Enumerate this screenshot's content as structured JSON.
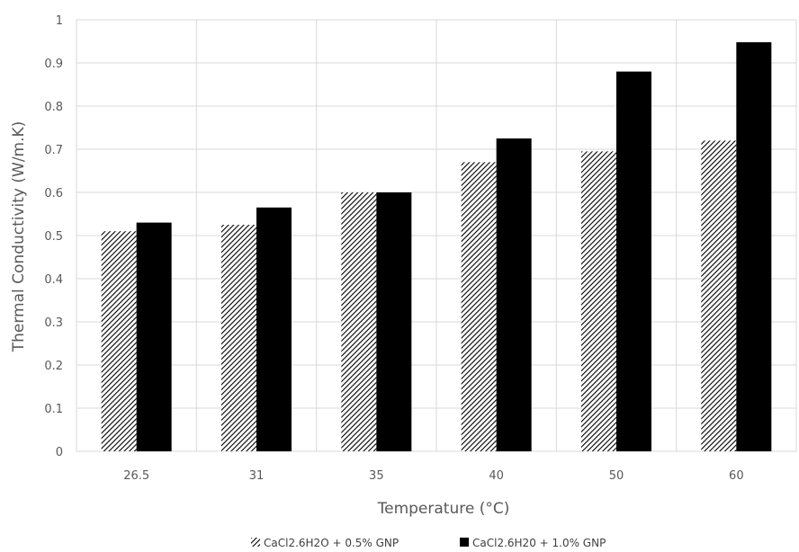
{
  "chart_data": {
    "type": "bar",
    "title": "",
    "xlabel": "Temperature (°C)",
    "ylabel": "Thermal Conductivity (W/m.K)",
    "categories": [
      "26.5",
      "31",
      "35",
      "40",
      "50",
      "60"
    ],
    "ylim": [
      0,
      1
    ],
    "yticks": [
      "0",
      "0.1",
      "0.2",
      "0.3",
      "0.4",
      "0.5",
      "0.6",
      "0.7",
      "0.8",
      "0.9",
      "1"
    ],
    "grid": true,
    "legend_position": "bottom",
    "series": [
      {
        "name": "CaCl2.6H2O + 0.5% GNP",
        "values": [
          0.51,
          0.525,
          0.6,
          0.67,
          0.695,
          0.72
        ],
        "fill": "diagonal-hatch",
        "color": "#000000"
      },
      {
        "name": "CaCl2.6H20 + 1.0% GNP",
        "values": [
          0.53,
          0.565,
          0.6,
          0.725,
          0.88,
          0.948
        ],
        "fill": "solid",
        "color": "#000000"
      }
    ]
  }
}
